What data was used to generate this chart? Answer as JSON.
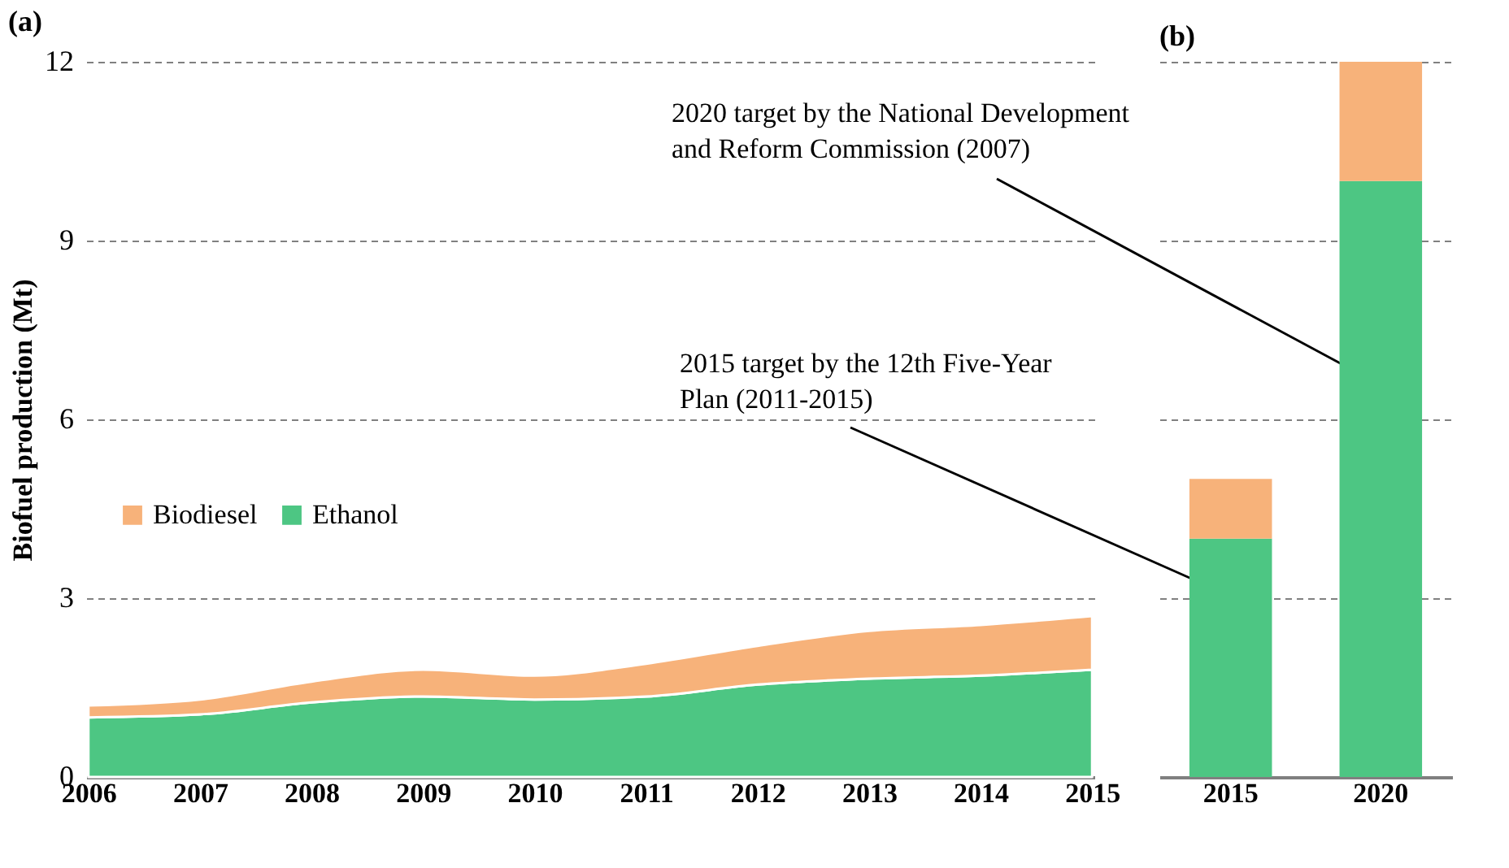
{
  "chart_data": [
    {
      "type": "area",
      "title": "(a)",
      "ylabel": "Biofuel production (Mt)",
      "stacked": true,
      "categories": [
        "2006",
        "2007",
        "2008",
        "2009",
        "2010",
        "2011",
        "2012",
        "2013",
        "2014",
        "2015"
      ],
      "series": [
        {
          "name": "Ethanol",
          "color": "#4dc683",
          "values": [
            1.0,
            1.05,
            1.25,
            1.35,
            1.3,
            1.35,
            1.55,
            1.65,
            1.7,
            1.8
          ]
        },
        {
          "name": "Biodiesel",
          "color": "#f7b27a",
          "values": [
            0.2,
            0.25,
            0.35,
            0.45,
            0.4,
            0.55,
            0.65,
            0.8,
            0.85,
            0.9
          ]
        }
      ],
      "ylim": [
        0,
        12
      ],
      "yticks": [
        0,
        3,
        6,
        9,
        12
      ],
      "grid": "y",
      "legend": "left",
      "annotations": [
        "2020 target by the National Development\nand Reform Commission (2007)",
        "2015 target by the 12th Five-Year\nPlan (2011-2015)"
      ]
    },
    {
      "type": "bar",
      "title": "(b)",
      "stacked": true,
      "categories": [
        "2015",
        "2020"
      ],
      "series": [
        {
          "color": "#4dc683",
          "values": [
            4,
            10
          ]
        },
        {
          "color": "#f7b27a",
          "values": [
            1,
            2
          ]
        }
      ],
      "ylim": [
        0,
        12
      ],
      "yticks": [
        0,
        3,
        6,
        9,
        12
      ],
      "grid": "y",
      "tick_labels": "x"
    }
  ]
}
